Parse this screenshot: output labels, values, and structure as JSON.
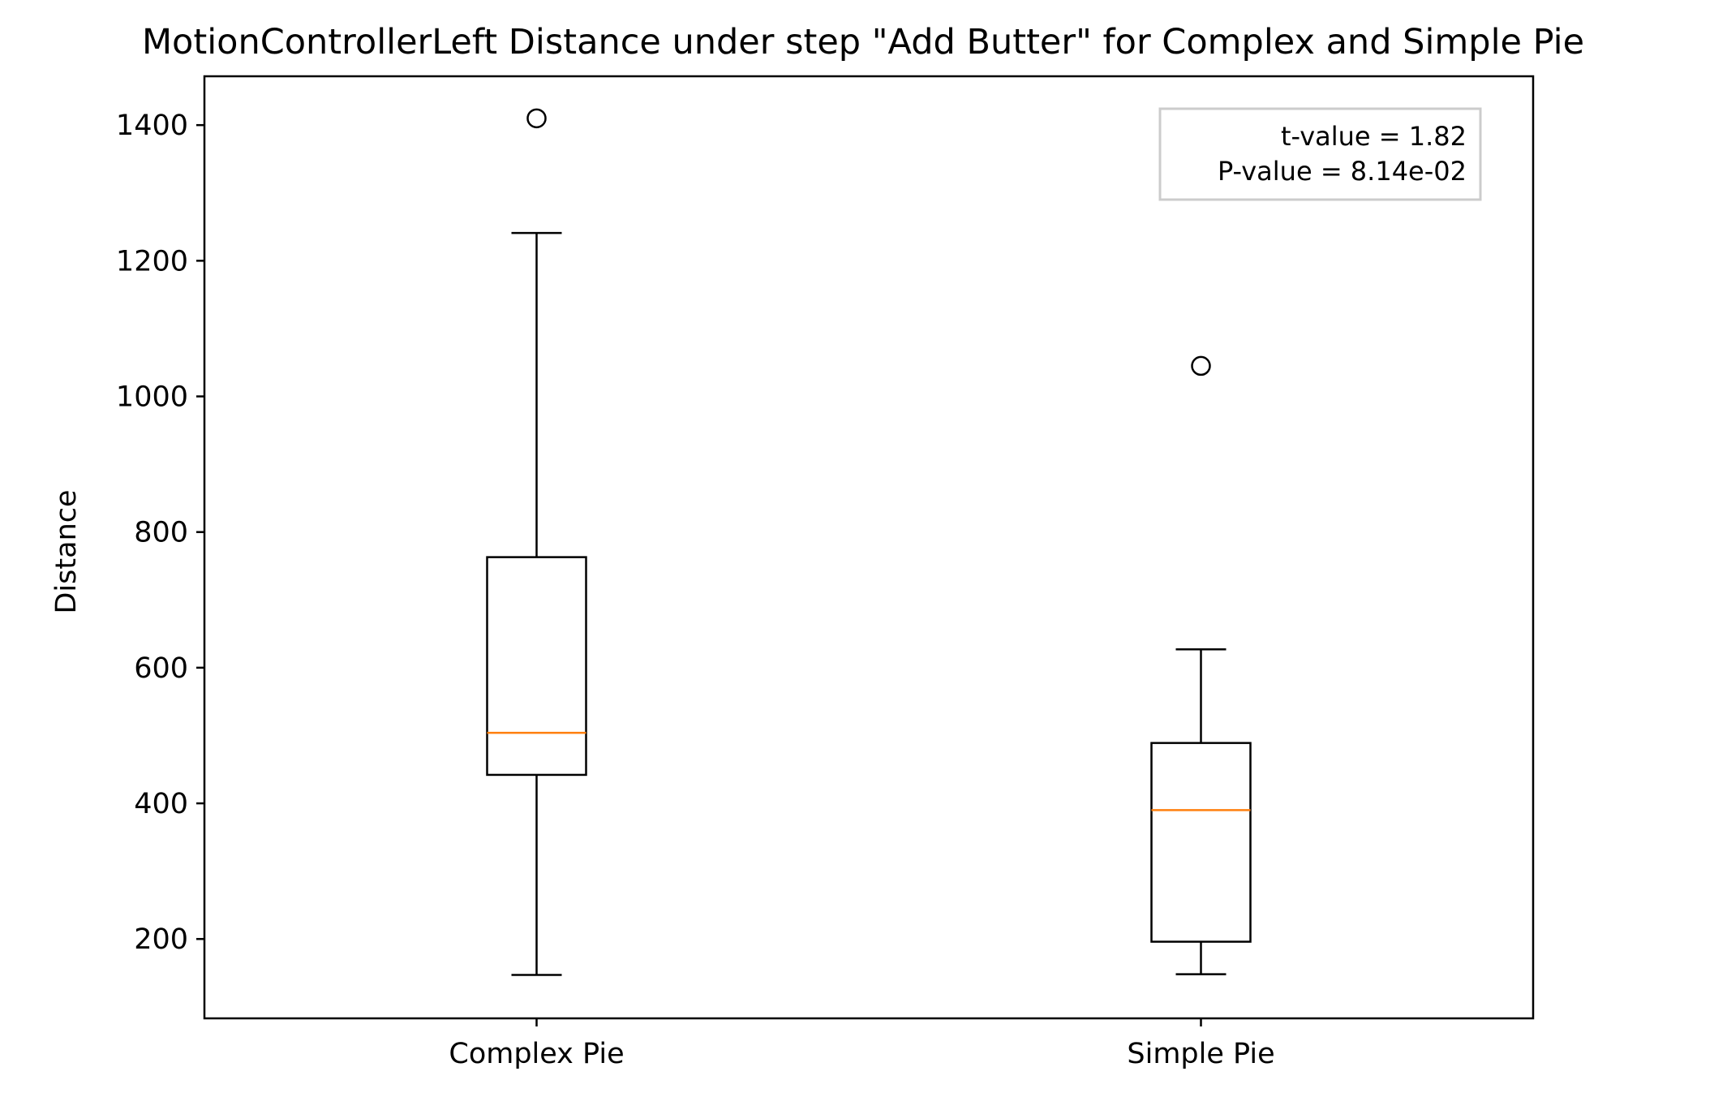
{
  "chart_data": {
    "type": "box",
    "title": "MotionControllerLeft Distance under step \"Add Butter\" for Complex and Simple Pie",
    "xlabel": "",
    "ylabel": "Distance",
    "ylim": [
      83,
      1472
    ],
    "yticks": [
      200,
      400,
      600,
      800,
      1000,
      1200,
      1400
    ],
    "grid": false,
    "categories": [
      "Complex Pie",
      "Simple Pie"
    ],
    "boxes": [
      {
        "category": "Complex Pie",
        "whisker_low": 147,
        "q1": 442,
        "median": 504,
        "q3": 763,
        "whisker_high": 1241,
        "outliers": [
          1410
        ]
      },
      {
        "category": "Simple Pie",
        "whisker_low": 148,
        "q1": 196,
        "median": 390,
        "q3": 489,
        "whisker_high": 627,
        "outliers": [
          1045
        ]
      }
    ],
    "annotation": {
      "placement": "top-right",
      "lines": [
        "t-value = 1.82",
        "P-value = 8.14e-02"
      ]
    },
    "colors": {
      "box": "#000000",
      "median": "#ff7f0e",
      "annotation_border": "#cccccc"
    }
  }
}
